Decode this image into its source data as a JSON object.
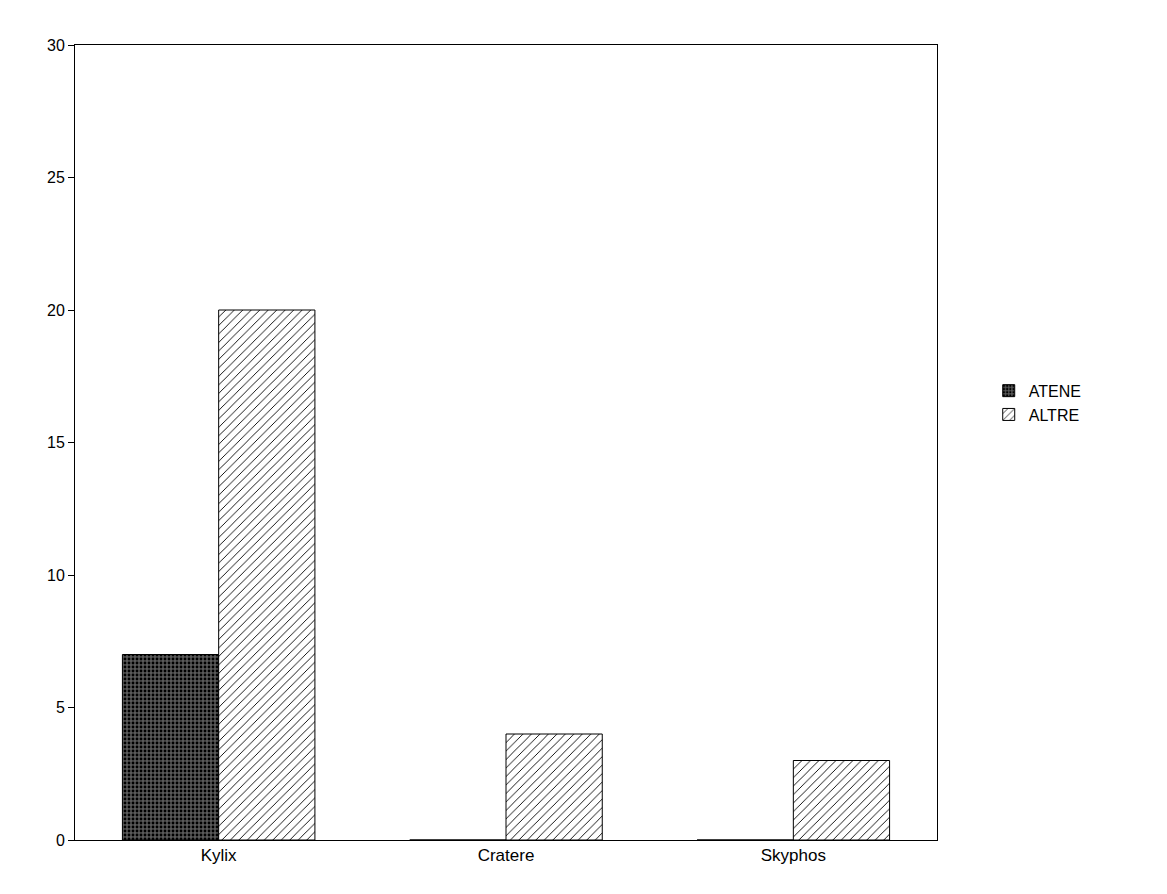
{
  "chart_data": {
    "type": "bar",
    "categories": [
      "Kylix",
      "Cratere",
      "Skyphos"
    ],
    "series": [
      {
        "name": "ATENE",
        "color": "#5a5a5a",
        "marker": "dots",
        "values": [
          7,
          0,
          0
        ]
      },
      {
        "name": "ALTRE",
        "color": "#ffffff",
        "marker": "hatch",
        "values": [
          20,
          4,
          3
        ]
      }
    ],
    "ylim": [
      0,
      30
    ],
    "yticks": [
      0,
      5,
      10,
      15,
      20,
      25,
      30
    ],
    "grid": false,
    "legend": "right"
  }
}
